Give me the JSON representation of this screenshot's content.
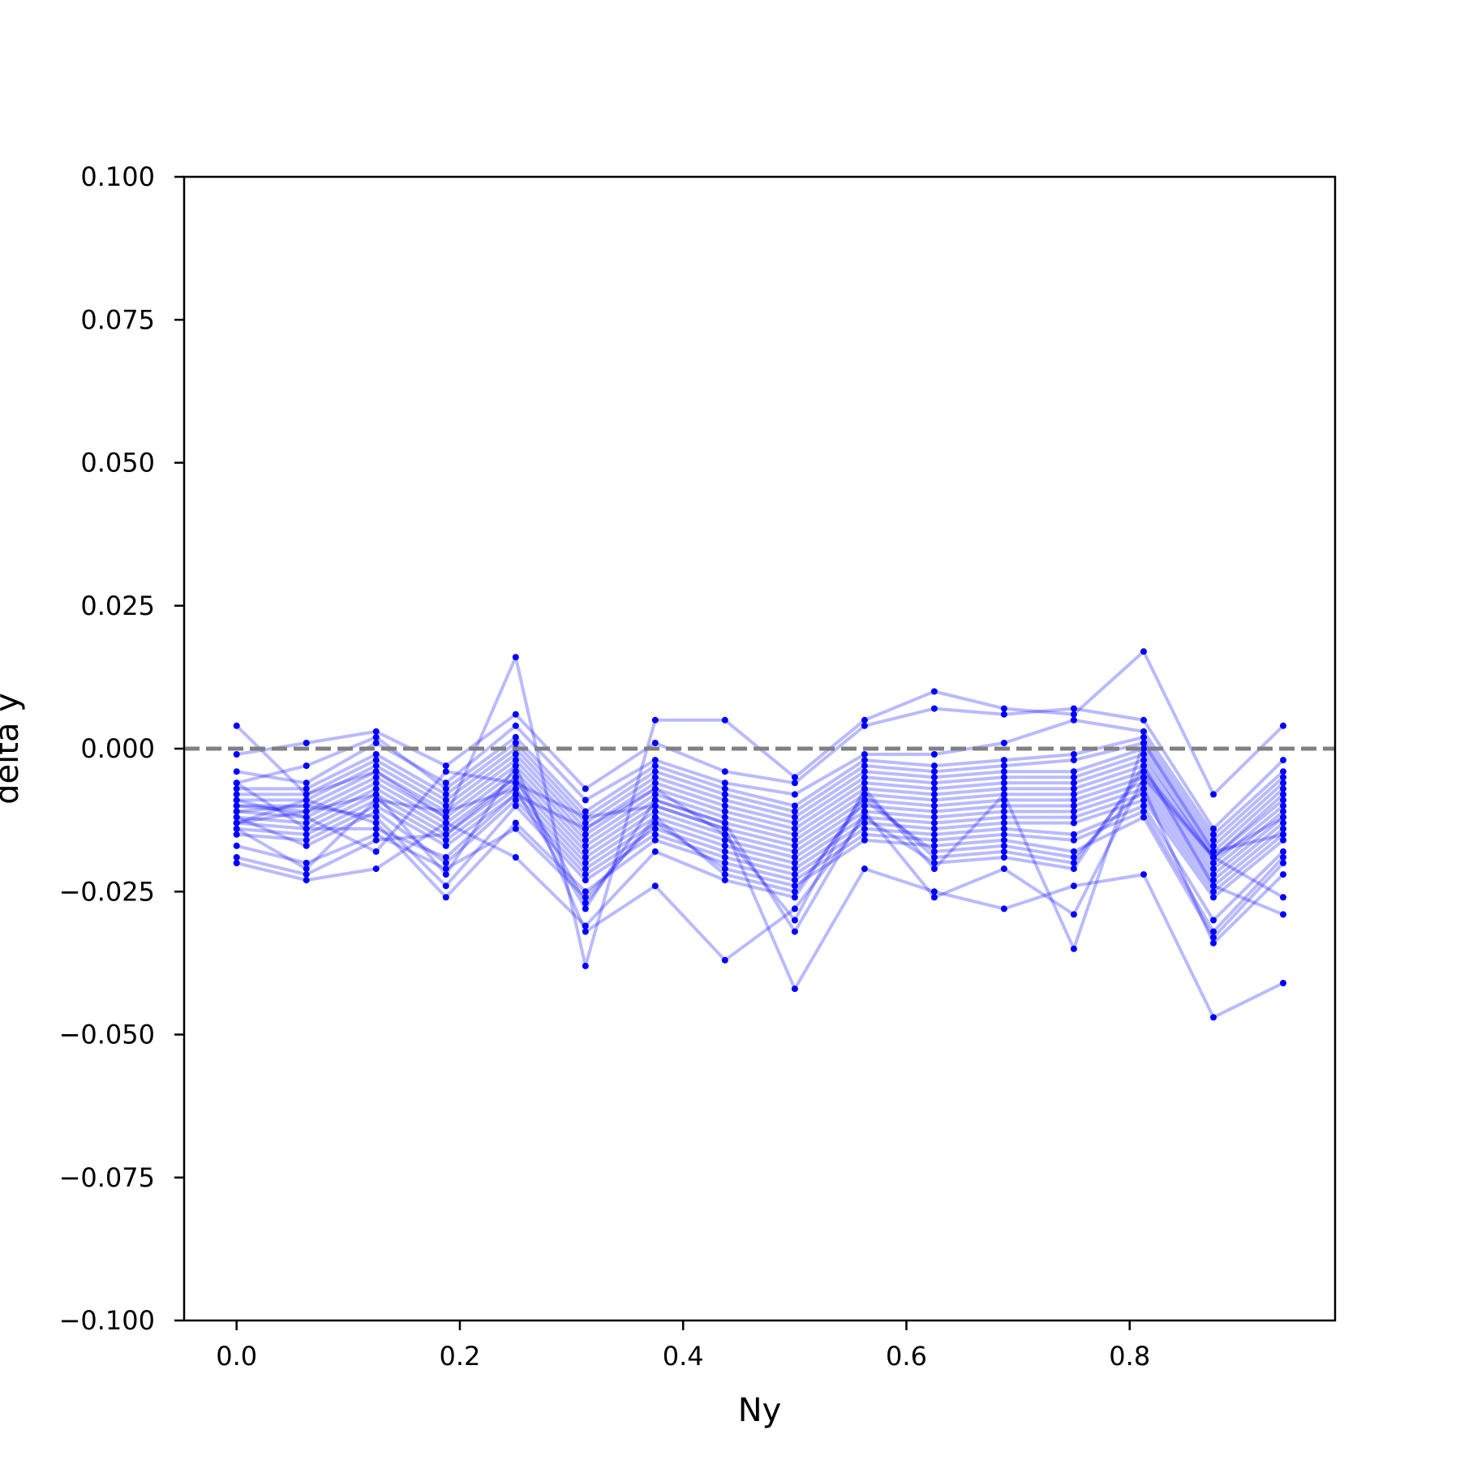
{
  "chart_data": {
    "type": "line",
    "title": "",
    "xlabel": "Ny",
    "ylabel": "delta y",
    "xlim": [
      -0.047,
      0.984
    ],
    "ylim": [
      -0.1,
      0.1
    ],
    "grid": false,
    "legend": "none",
    "x_ticks": [
      "0.0",
      "0.2",
      "0.4",
      "0.6",
      "0.8"
    ],
    "x_tick_values": [
      0.0,
      0.2,
      0.4,
      0.6,
      0.8
    ],
    "y_ticks": [
      "0.100",
      "0.075",
      "0.050",
      "0.025",
      "0.000",
      "−0.025",
      "−0.050",
      "−0.075",
      "−0.100"
    ],
    "y_tick_values": [
      0.1,
      0.075,
      0.05,
      0.025,
      0.0,
      -0.025,
      -0.05,
      -0.075,
      -0.1
    ],
    "reference_line": {
      "y": 0.0,
      "color": "#808080",
      "style": "dashed"
    },
    "series_color": "#0000ff",
    "x": [
      0.0,
      0.0625,
      0.125,
      0.1875,
      0.25,
      0.3125,
      0.375,
      0.4375,
      0.5,
      0.5625,
      0.625,
      0.6875,
      0.75,
      0.8125,
      0.875,
      0.9375
    ],
    "series": [
      {
        "values": [
          0.004,
          -0.008,
          -0.004,
          -0.012,
          0.016,
          -0.038,
          0.005,
          0.005,
          -0.005,
          0.005,
          0.01,
          0.007,
          0.006,
          0.017,
          -0.008,
          0.004
        ]
      },
      {
        "values": [
          -0.001,
          0.001,
          0.003,
          -0.003,
          0.006,
          -0.007,
          0.001,
          -0.004,
          -0.006,
          0.004,
          0.007,
          0.006,
          0.007,
          0.005,
          -0.014,
          -0.002
        ]
      },
      {
        "values": [
          -0.004,
          -0.006,
          0.001,
          -0.006,
          0.004,
          -0.009,
          -0.002,
          -0.006,
          -0.008,
          -0.001,
          -0.001,
          0.001,
          0.005,
          0.003,
          -0.015,
          -0.004
        ]
      },
      {
        "values": [
          -0.006,
          -0.003,
          0.002,
          -0.007,
          0.002,
          -0.011,
          -0.003,
          -0.007,
          -0.01,
          -0.002,
          -0.003,
          -0.002,
          -0.001,
          0.002,
          -0.016,
          -0.005
        ]
      },
      {
        "values": [
          -0.007,
          -0.007,
          -0.001,
          -0.008,
          0.001,
          -0.012,
          -0.004,
          -0.008,
          -0.011,
          -0.003,
          -0.004,
          -0.003,
          -0.002,
          0.001,
          -0.017,
          -0.006
        ]
      },
      {
        "values": [
          -0.008,
          -0.008,
          -0.002,
          -0.009,
          0.0,
          -0.013,
          -0.005,
          -0.009,
          -0.012,
          -0.004,
          -0.005,
          -0.004,
          -0.004,
          0.0,
          -0.018,
          -0.007
        ]
      },
      {
        "values": [
          -0.009,
          -0.009,
          -0.003,
          -0.01,
          -0.001,
          -0.014,
          -0.006,
          -0.01,
          -0.013,
          -0.005,
          -0.006,
          -0.005,
          -0.005,
          -0.001,
          -0.019,
          -0.008
        ]
      },
      {
        "values": [
          -0.01,
          -0.01,
          -0.004,
          -0.011,
          -0.002,
          -0.015,
          -0.007,
          -0.011,
          -0.014,
          -0.006,
          -0.007,
          -0.006,
          -0.006,
          -0.002,
          -0.019,
          -0.009
        ]
      },
      {
        "values": [
          -0.01,
          -0.011,
          -0.005,
          -0.012,
          -0.003,
          -0.016,
          -0.008,
          -0.012,
          -0.015,
          -0.007,
          -0.008,
          -0.007,
          -0.007,
          -0.003,
          -0.02,
          -0.01
        ]
      },
      {
        "values": [
          -0.011,
          -0.012,
          -0.006,
          -0.013,
          -0.004,
          -0.017,
          -0.009,
          -0.013,
          -0.016,
          -0.008,
          -0.009,
          -0.008,
          -0.008,
          -0.004,
          -0.021,
          -0.011
        ]
      },
      {
        "values": [
          -0.012,
          -0.013,
          -0.007,
          -0.014,
          -0.005,
          -0.018,
          -0.01,
          -0.014,
          -0.017,
          -0.009,
          -0.01,
          -0.009,
          -0.009,
          -0.005,
          -0.022,
          -0.012
        ]
      },
      {
        "values": [
          -0.013,
          -0.014,
          -0.008,
          -0.015,
          -0.006,
          -0.019,
          -0.011,
          -0.015,
          -0.018,
          -0.01,
          -0.011,
          -0.01,
          -0.01,
          -0.006,
          -0.023,
          -0.013
        ]
      },
      {
        "values": [
          -0.014,
          -0.015,
          -0.009,
          -0.016,
          -0.007,
          -0.02,
          -0.012,
          -0.016,
          -0.019,
          -0.011,
          -0.012,
          -0.011,
          -0.011,
          -0.007,
          -0.024,
          -0.014
        ]
      },
      {
        "values": [
          -0.015,
          -0.016,
          -0.01,
          -0.017,
          -0.008,
          -0.021,
          -0.013,
          -0.017,
          -0.02,
          -0.012,
          -0.013,
          -0.012,
          -0.012,
          -0.008,
          -0.025,
          -0.015
        ]
      },
      {
        "values": [
          -0.012,
          -0.017,
          -0.011,
          -0.02,
          -0.009,
          -0.022,
          -0.014,
          -0.018,
          -0.021,
          -0.013,
          -0.014,
          -0.013,
          -0.013,
          -0.009,
          -0.026,
          -0.016
        ]
      },
      {
        "values": [
          -0.011,
          -0.01,
          -0.012,
          -0.024,
          -0.01,
          -0.023,
          -0.015,
          -0.019,
          -0.022,
          -0.014,
          -0.015,
          -0.014,
          -0.015,
          -0.01,
          -0.03,
          -0.018
        ]
      },
      {
        "values": [
          -0.013,
          -0.009,
          -0.013,
          -0.026,
          -0.013,
          -0.025,
          -0.016,
          -0.02,
          -0.023,
          -0.015,
          -0.016,
          -0.015,
          -0.016,
          -0.011,
          -0.032,
          -0.019
        ]
      },
      {
        "values": [
          -0.017,
          -0.02,
          -0.015,
          -0.021,
          -0.014,
          -0.026,
          -0.013,
          -0.021,
          -0.024,
          -0.016,
          -0.017,
          -0.016,
          -0.018,
          -0.012,
          -0.033,
          -0.02
        ]
      },
      {
        "values": [
          -0.019,
          -0.022,
          -0.016,
          -0.015,
          -0.005,
          -0.027,
          -0.012,
          -0.022,
          -0.025,
          -0.009,
          -0.018,
          -0.017,
          -0.019,
          -0.007,
          -0.034,
          -0.022
        ]
      },
      {
        "values": [
          -0.02,
          -0.023,
          -0.021,
          -0.013,
          -0.019,
          -0.031,
          -0.018,
          -0.023,
          -0.026,
          -0.008,
          -0.019,
          -0.018,
          -0.02,
          -0.004,
          -0.019,
          -0.026
        ]
      },
      {
        "values": [
          -0.013,
          -0.011,
          -0.008,
          -0.022,
          -0.003,
          -0.032,
          -0.024,
          -0.037,
          -0.028,
          -0.012,
          -0.02,
          -0.019,
          -0.021,
          -0.003,
          -0.024,
          -0.029
        ]
      },
      {
        "values": [
          -0.009,
          -0.012,
          -0.018,
          -0.004,
          -0.006,
          -0.012,
          -0.01,
          -0.014,
          -0.042,
          -0.021,
          -0.025,
          -0.028,
          -0.024,
          -0.022,
          -0.047,
          -0.041
        ]
      },
      {
        "values": [
          -0.014,
          -0.021,
          -0.009,
          -0.011,
          -0.007,
          -0.028,
          -0.009,
          -0.013,
          -0.032,
          -0.011,
          -0.026,
          -0.021,
          -0.029,
          -0.005,
          -0.019,
          -0.012
        ]
      },
      {
        "values": [
          -0.006,
          -0.014,
          -0.014,
          -0.019,
          -0.008,
          -0.014,
          -0.007,
          -0.015,
          -0.03,
          -0.007,
          -0.021,
          -0.008,
          -0.035,
          0.001,
          -0.018,
          -0.015
        ]
      }
    ]
  }
}
